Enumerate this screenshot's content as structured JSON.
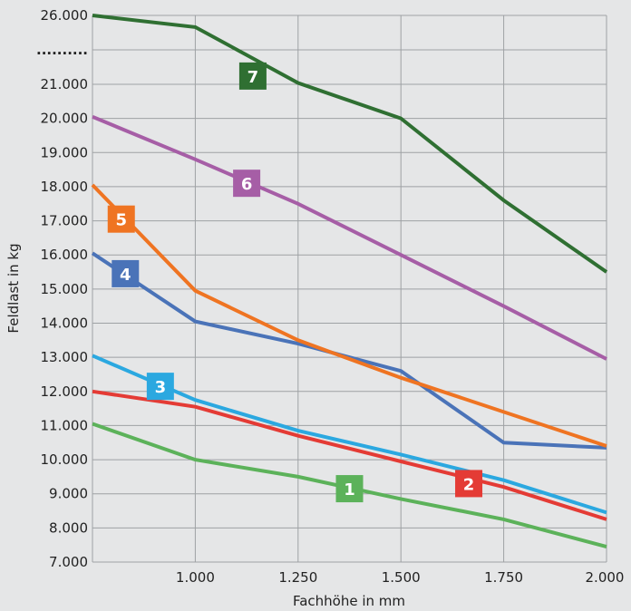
{
  "chart_data": {
    "type": "line",
    "xlabel": "Fachhöhe in mm",
    "ylabel": "Feldlast in kg",
    "xlim": [
      750,
      2000
    ],
    "ylim": [
      7000,
      26000
    ],
    "grid": true,
    "x_ticks": [
      {
        "value": 1000,
        "label": "1.000"
      },
      {
        "value": 1250,
        "label": "1.250"
      },
      {
        "value": 1500,
        "label": "1.500"
      },
      {
        "value": 1750,
        "label": "1.750"
      },
      {
        "value": 2000,
        "label": "2.000"
      }
    ],
    "y_ticks": [
      {
        "value": 26000,
        "label": "26.000"
      },
      {
        "value": 25000,
        "label": ".........."
      },
      {
        "value": 21000,
        "label": "21.000"
      },
      {
        "value": 20000,
        "label": "20.000"
      },
      {
        "value": 19000,
        "label": "19.000"
      },
      {
        "value": 18000,
        "label": "18.000"
      },
      {
        "value": 17000,
        "label": "17.000"
      },
      {
        "value": 16000,
        "label": "16.000"
      },
      {
        "value": 15000,
        "label": "15.000"
      },
      {
        "value": 14000,
        "label": "14.000"
      },
      {
        "value": 13000,
        "label": "13.000"
      },
      {
        "value": 12000,
        "label": "12.000"
      },
      {
        "value": 11000,
        "label": "11.000"
      },
      {
        "value": 10000,
        "label": "10.000"
      },
      {
        "value": 9000,
        "label": "9.000"
      },
      {
        "value": 8000,
        "label": "8.000"
      },
      {
        "value": 7000,
        "label": "7.000"
      }
    ],
    "y_axis_note": "axis is broken between 21.000 and 26.000 (dotted tick)",
    "series": [
      {
        "label": "1",
        "color": "#5cb25a",
        "label_at": [
          1375,
          9150
        ],
        "points": [
          [
            750,
            11050
          ],
          [
            1000,
            10000
          ],
          [
            1250,
            9500
          ],
          [
            1500,
            8850
          ],
          [
            1750,
            8250
          ],
          [
            2000,
            7450
          ]
        ]
      },
      {
        "label": "2",
        "color": "#e43b35",
        "label_at": [
          1665,
          9300
        ],
        "points": [
          [
            750,
            12000
          ],
          [
            1000,
            11550
          ],
          [
            1250,
            10700
          ],
          [
            1500,
            9950
          ],
          [
            1750,
            9200
          ],
          [
            2000,
            8250
          ]
        ]
      },
      {
        "label": "3",
        "color": "#2ba8e0",
        "label_at": [
          915,
          12150
        ],
        "points": [
          [
            750,
            13050
          ],
          [
            1000,
            11750
          ],
          [
            1250,
            10850
          ],
          [
            1500,
            10150
          ],
          [
            1750,
            9400
          ],
          [
            2000,
            8450
          ]
        ]
      },
      {
        "label": "4",
        "color": "#4a73b8",
        "label_at": [
          830,
          15450
        ],
        "points": [
          [
            750,
            16050
          ],
          [
            1000,
            14050
          ],
          [
            1250,
            13400
          ],
          [
            1500,
            12600
          ],
          [
            1750,
            10500
          ],
          [
            2000,
            10350
          ]
        ]
      },
      {
        "label": "5",
        "color": "#ef7422",
        "label_at": [
          820,
          17050
        ],
        "points": [
          [
            750,
            18050
          ],
          [
            1000,
            14950
          ],
          [
            1250,
            13500
          ],
          [
            1500,
            12400
          ],
          [
            1750,
            11400
          ],
          [
            2000,
            10400
          ]
        ]
      },
      {
        "label": "6",
        "color": "#a65ea6",
        "label_at": [
          1125,
          18100
        ],
        "points": [
          [
            750,
            20050
          ],
          [
            1000,
            18800
          ],
          [
            1250,
            17500
          ],
          [
            1500,
            16000
          ],
          [
            1750,
            14500
          ],
          [
            2000,
            12950
          ]
        ]
      },
      {
        "label": "7",
        "color": "#2f6f32",
        "label_at": [
          1140,
          21600
        ],
        "points": [
          [
            750,
            26000
          ],
          [
            1000,
            25150
          ],
          [
            1250,
            21100
          ],
          [
            1500,
            20000
          ],
          [
            1750,
            17600
          ],
          [
            2000,
            15500
          ]
        ]
      }
    ]
  }
}
